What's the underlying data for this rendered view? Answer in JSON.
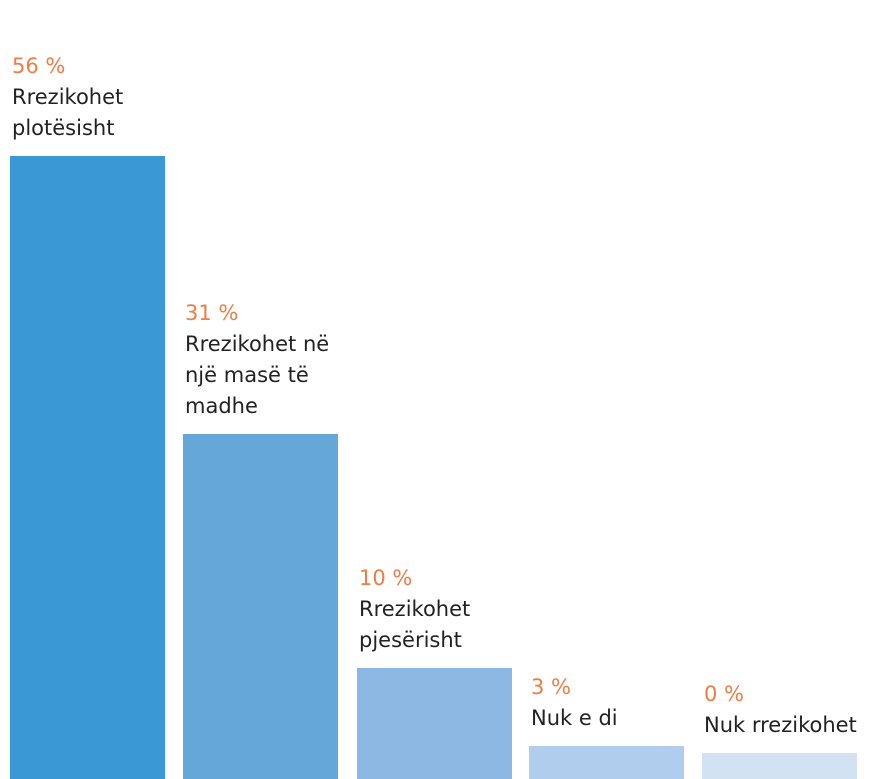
{
  "chart_data": {
    "type": "bar",
    "categories": [
      "Rrezikohet\nplotësisht",
      "Rrezikohet në\nnjë masë të madhe",
      "Rrezikohet\npjesërisht",
      "Nuk e di",
      "Nuk rrezikohet"
    ],
    "values": [
      56,
      31,
      10,
      3,
      0
    ],
    "value_labels": [
      "56 %",
      "31 %",
      "10 %",
      "3 %",
      "0 %"
    ],
    "colors": [
      "#3a99d4",
      "#65a7d9",
      "#8cb8e3",
      "#b0cdee",
      "#d3e2f3"
    ],
    "label_color": "#f07c47",
    "ylim": [
      0,
      56
    ]
  }
}
